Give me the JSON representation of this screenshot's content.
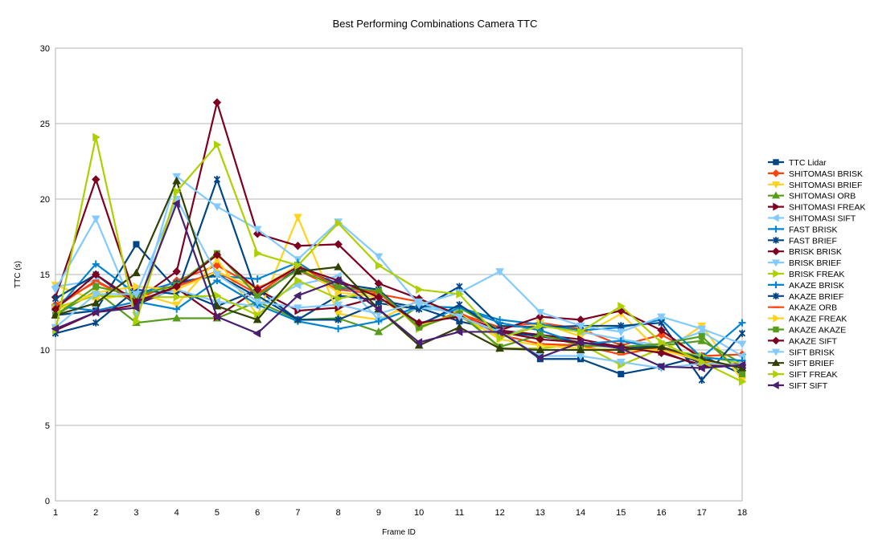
{
  "chart_data": {
    "type": "line",
    "title": "Best Performing Combinations Camera TTC",
    "xlabel": "Frame ID",
    "ylabel": "TTC (s)",
    "ylim": [
      0,
      30
    ],
    "yticks": [
      0,
      5,
      10,
      15,
      20,
      25,
      30
    ],
    "x": [
      1,
      2,
      3,
      4,
      5,
      6,
      7,
      8,
      9,
      10,
      11,
      12,
      13,
      14,
      15,
      16,
      17,
      18
    ],
    "grid": "horizontal",
    "legend_position": "right",
    "series": [
      {
        "name": "TTC Lidar",
        "color": "#004586",
        "marker": "square",
        "values": [
          12.3,
          12.6,
          17.0,
          14.0,
          12.9,
          14.0,
          12.0,
          13.6,
          13.3,
          12.8,
          11.9,
          11.3,
          9.4,
          9.4,
          8.4,
          8.9,
          9.6,
          8.4
        ]
      },
      {
        "name": "SHITOMASI BRISK",
        "color": "#ff420e",
        "marker": "diamond",
        "values": [
          13.0,
          14.5,
          13.3,
          14.6,
          15.6,
          14.1,
          15.3,
          14.0,
          13.7,
          13.2,
          12.4,
          11.5,
          11.8,
          11.4,
          10.3,
          11.0,
          9.6,
          9.7
        ]
      },
      {
        "name": "SHITOMASI BRIEF",
        "color": "#ffd320",
        "marker": "triangle-down",
        "values": [
          14.3,
          13.3,
          13.8,
          13.0,
          16.0,
          12.3,
          18.8,
          12.4,
          12.0,
          13.3,
          12.2,
          10.8,
          11.8,
          10.9,
          12.4,
          9.8,
          11.6,
          8.0
        ]
      },
      {
        "name": "SHITOMASI ORB",
        "color": "#579d1c",
        "marker": "triangle-up",
        "values": [
          12.3,
          13.9,
          11.8,
          12.1,
          12.1,
          13.2,
          12.0,
          12.1,
          11.2,
          12.9,
          12.8,
          11.3,
          11.0,
          10.5,
          10.2,
          10.3,
          10.6,
          9.1
        ]
      },
      {
        "name": "SHITOMASI FREAK",
        "color": "#7e0021",
        "marker": "triangle-right",
        "values": [
          11.3,
          12.5,
          13.0,
          14.1,
          12.2,
          14.0,
          12.6,
          12.8,
          13.5,
          11.7,
          12.3,
          11.3,
          11.0,
          10.7,
          10.2,
          9.9,
          8.9,
          9.1
        ]
      },
      {
        "name": "SHITOMASI SIFT",
        "color": "#83caff",
        "marker": "triangle-left",
        "values": [
          14.2,
          14.6,
          13.2,
          14.0,
          13.2,
          12.9,
          14.3,
          14.9,
          12.0,
          12.8,
          12.5,
          10.9,
          11.6,
          11.2,
          10.7,
          10.3,
          11.2,
          9.6
        ]
      },
      {
        "name": "FAST BRISK",
        "color": "#0084d1",
        "marker": "plus",
        "values": [
          12.9,
          12.6,
          13.2,
          12.7,
          14.6,
          13.0,
          11.9,
          11.4,
          11.9,
          12.9,
          12.8,
          12.0,
          11.7,
          11.3,
          11.5,
          12.0,
          9.5,
          11.8
        ]
      },
      {
        "name": "FAST BRIEF",
        "color": "#004586",
        "marker": "star",
        "values": [
          11.1,
          11.8,
          14.0,
          13.7,
          21.3,
          13.6,
          12.0,
          12.0,
          13.1,
          12.7,
          14.2,
          11.6,
          11.5,
          11.6,
          11.6,
          11.8,
          8.0,
          11.1
        ]
      },
      {
        "name": "BRISK BRISK",
        "color": "#7e0021",
        "marker": "diamond",
        "values": [
          13.5,
          21.3,
          13.3,
          15.2,
          26.4,
          17.7,
          16.9,
          17.0,
          14.4,
          13.4,
          12.3,
          11.3,
          12.2,
          12.0,
          12.6,
          11.3,
          9.4,
          8.8
        ]
      },
      {
        "name": "BRISK BRIEF",
        "color": "#83caff",
        "marker": "triangle-down",
        "values": [
          14.0,
          18.7,
          12.3,
          21.5,
          19.5,
          18.0,
          16.0,
          18.5,
          16.2,
          13.0,
          13.8,
          15.2,
          12.5,
          11.6,
          11.2,
          12.2,
          11.4,
          10.4
        ]
      },
      {
        "name": "BRISK FREAK",
        "color": "#aecf00",
        "marker": "triangle-right",
        "values": [
          12.8,
          13.6,
          13.5,
          13.5,
          13.6,
          12.3,
          14.6,
          13.4,
          13.9,
          11.4,
          12.6,
          10.1,
          10.1,
          10.4,
          9.0,
          10.1,
          9.6,
          9.1
        ]
      },
      {
        "name": "AKAZE BRISK",
        "color": "#0084d1",
        "marker": "plus",
        "values": [
          12.6,
          15.7,
          13.7,
          14.5,
          14.9,
          14.7,
          15.8,
          14.1,
          13.9,
          11.7,
          12.8,
          11.8,
          11.3,
          10.4,
          10.6,
          10.1,
          9.5,
          9.3
        ]
      },
      {
        "name": "AKAZE BRIEF",
        "color": "#004586",
        "marker": "star",
        "values": [
          13.4,
          15.0,
          13.0,
          14.4,
          15.0,
          13.5,
          15.4,
          14.4,
          14.0,
          11.6,
          13.0,
          11.2,
          10.9,
          10.5,
          10.2,
          10.2,
          9.1,
          9.0
        ]
      },
      {
        "name": "AKAZE ORB",
        "color": "#ff420e",
        "marker": "dash",
        "values": [
          12.8,
          14.6,
          13.2,
          14.2,
          15.2,
          13.7,
          15.6,
          14.2,
          13.8,
          11.5,
          12.5,
          11.0,
          10.4,
          10.3,
          9.7,
          10.2,
          9.2,
          8.9
        ]
      },
      {
        "name": "AKAZE FREAK",
        "color": "#ffd320",
        "marker": "triangle-right",
        "values": [
          12.6,
          13.8,
          14.2,
          14.0,
          15.2,
          14.0,
          15.6,
          13.8,
          13.5,
          11.6,
          12.4,
          10.7,
          10.3,
          10.1,
          10.0,
          10.0,
          9.3,
          8.9
        ]
      },
      {
        "name": "AKAZE AKAZE",
        "color": "#579d1c",
        "marker": "square",
        "values": [
          12.3,
          14.2,
          13.6,
          14.3,
          16.4,
          13.6,
          15.3,
          14.2,
          13.9,
          11.5,
          12.4,
          10.2,
          11.0,
          10.3,
          10.2,
          10.4,
          10.9,
          8.4
        ]
      },
      {
        "name": "AKAZE SIFT",
        "color": "#7e0021",
        "marker": "diamond",
        "values": [
          12.7,
          15.0,
          13.2,
          14.2,
          16.3,
          14.0,
          15.5,
          14.6,
          13.5,
          11.8,
          12.2,
          11.2,
          10.7,
          10.5,
          10.2,
          9.8,
          9.0,
          9.0
        ]
      },
      {
        "name": "SIFT BRISK",
        "color": "#83caff",
        "marker": "triangle-down",
        "values": [
          11.5,
          13.7,
          13.7,
          20.0,
          15.0,
          13.2,
          12.8,
          13.0,
          12.4,
          13.2,
          12.2,
          11.2,
          9.6,
          9.6,
          9.2,
          8.8,
          9.1,
          9.0
        ]
      },
      {
        "name": "SIFT BRIEF",
        "color": "#314004",
        "marker": "triangle-up",
        "values": [
          12.3,
          13.1,
          15.1,
          21.2,
          12.9,
          12.0,
          15.2,
          15.5,
          12.7,
          10.3,
          11.5,
          10.1,
          10.0,
          10.0,
          10.0,
          10.2,
          9.4,
          8.8
        ]
      },
      {
        "name": "SIFT FREAK",
        "color": "#aecf00",
        "marker": "triangle-right",
        "values": [
          11.3,
          24.1,
          11.9,
          20.5,
          23.6,
          16.4,
          15.6,
          18.4,
          15.6,
          14.0,
          13.7,
          10.8,
          11.6,
          11.2,
          12.9,
          10.5,
          9.2,
          7.9
        ]
      },
      {
        "name": "SIFT SIFT",
        "color": "#4b1f6f",
        "marker": "triangle-left",
        "values": [
          11.4,
          12.5,
          12.8,
          19.7,
          12.2,
          11.1,
          13.6,
          14.6,
          12.7,
          10.5,
          11.2,
          11.2,
          9.5,
          10.5,
          10.1,
          8.9,
          8.8,
          9.0
        ]
      }
    ]
  }
}
